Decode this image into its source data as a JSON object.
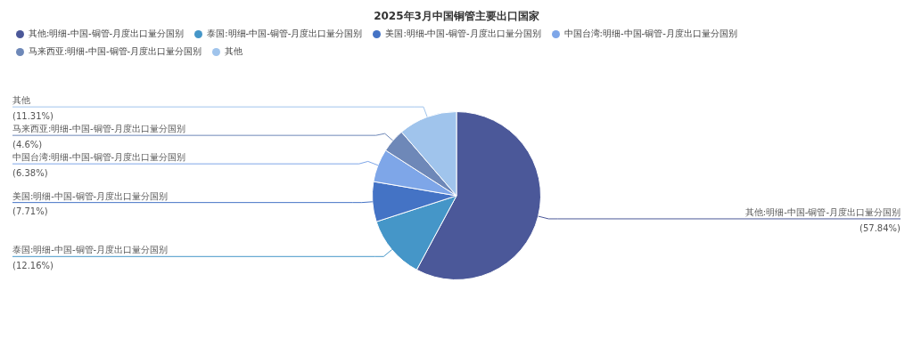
{
  "chart_data": {
    "type": "pie",
    "title": "2025年3月中国铜管主要出口国家",
    "categories": [
      "其他:明细-中国-铜管-月度出口量分国别",
      "泰国:明细-中国-铜管-月度出口量分国别",
      "美国:明细-中国-铜管-月度出口量分国别",
      "中国台湾:明细-中国-铜管-月度出口量分国别",
      "马来西亚:明细-中国-铜管-月度出口量分国别",
      "其他"
    ],
    "values": [
      57.84,
      12.16,
      7.71,
      6.38,
      4.6,
      11.31
    ],
    "value_labels": [
      "(57.84%)",
      "(12.16%)",
      "(7.71%)",
      "(6.38%)",
      "(4.6%)",
      "(11.31%)"
    ],
    "colors": [
      "#4b5899",
      "#4596c8",
      "#4473c5",
      "#7ea6e8",
      "#6e88b8",
      "#a0c4ec"
    ],
    "legend": "top"
  }
}
